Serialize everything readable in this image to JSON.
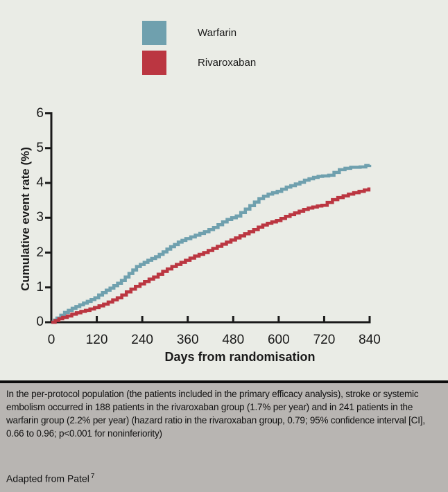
{
  "chart_data": {
    "type": "line",
    "step": true,
    "title": "",
    "xlabel": "Days from randomisation",
    "ylabel": "Cumulative event rate (%)",
    "xlim": [
      0,
      840
    ],
    "ylim": [
      0,
      6
    ],
    "x_ticks": [
      0,
      120,
      240,
      360,
      480,
      600,
      720,
      840
    ],
    "y_ticks": [
      0,
      1,
      2,
      3,
      4,
      5,
      6
    ],
    "grid": false,
    "legend_position": "top-center",
    "series": [
      {
        "name": "Warfarin",
        "color": "#6fa0ae",
        "points": [
          [
            0,
            0
          ],
          [
            8,
            0.06
          ],
          [
            15,
            0.12
          ],
          [
            25,
            0.2
          ],
          [
            35,
            0.28
          ],
          [
            45,
            0.34
          ],
          [
            55,
            0.4
          ],
          [
            65,
            0.45
          ],
          [
            75,
            0.5
          ],
          [
            85,
            0.55
          ],
          [
            95,
            0.6
          ],
          [
            105,
            0.65
          ],
          [
            115,
            0.7
          ],
          [
            125,
            0.78
          ],
          [
            135,
            0.85
          ],
          [
            145,
            0.92
          ],
          [
            155,
            0.98
          ],
          [
            165,
            1.05
          ],
          [
            175,
            1.12
          ],
          [
            185,
            1.2
          ],
          [
            195,
            1.3
          ],
          [
            205,
            1.4
          ],
          [
            215,
            1.5
          ],
          [
            225,
            1.6
          ],
          [
            235,
            1.66
          ],
          [
            245,
            1.72
          ],
          [
            255,
            1.78
          ],
          [
            265,
            1.83
          ],
          [
            275,
            1.88
          ],
          [
            285,
            1.95
          ],
          [
            295,
            2.02
          ],
          [
            305,
            2.1
          ],
          [
            315,
            2.17
          ],
          [
            325,
            2.23
          ],
          [
            335,
            2.3
          ],
          [
            345,
            2.35
          ],
          [
            355,
            2.4
          ],
          [
            368,
            2.45
          ],
          [
            380,
            2.5
          ],
          [
            392,
            2.55
          ],
          [
            404,
            2.6
          ],
          [
            416,
            2.66
          ],
          [
            428,
            2.72
          ],
          [
            440,
            2.8
          ],
          [
            452,
            2.88
          ],
          [
            464,
            2.95
          ],
          [
            476,
            3.0
          ],
          [
            488,
            3.05
          ],
          [
            500,
            3.15
          ],
          [
            512,
            3.25
          ],
          [
            524,
            3.35
          ],
          [
            536,
            3.45
          ],
          [
            548,
            3.55
          ],
          [
            560,
            3.62
          ],
          [
            572,
            3.68
          ],
          [
            584,
            3.72
          ],
          [
            596,
            3.76
          ],
          [
            608,
            3.82
          ],
          [
            620,
            3.88
          ],
          [
            632,
            3.92
          ],
          [
            644,
            3.97
          ],
          [
            656,
            4.02
          ],
          [
            668,
            4.08
          ],
          [
            680,
            4.12
          ],
          [
            692,
            4.16
          ],
          [
            704,
            4.19
          ],
          [
            716,
            4.2
          ],
          [
            732,
            4.22
          ],
          [
            746,
            4.3
          ],
          [
            760,
            4.38
          ],
          [
            775,
            4.42
          ],
          [
            790,
            4.45
          ],
          [
            815,
            4.46
          ],
          [
            830,
            4.5
          ],
          [
            840,
            4.52
          ]
        ]
      },
      {
        "name": "Rivaroxaban",
        "color": "#bb3641",
        "points": [
          [
            0,
            0
          ],
          [
            10,
            0.05
          ],
          [
            20,
            0.1
          ],
          [
            30,
            0.14
          ],
          [
            42,
            0.18
          ],
          [
            54,
            0.23
          ],
          [
            66,
            0.27
          ],
          [
            78,
            0.31
          ],
          [
            90,
            0.34
          ],
          [
            102,
            0.38
          ],
          [
            114,
            0.42
          ],
          [
            126,
            0.47
          ],
          [
            138,
            0.52
          ],
          [
            150,
            0.58
          ],
          [
            162,
            0.64
          ],
          [
            174,
            0.7
          ],
          [
            186,
            0.78
          ],
          [
            198,
            0.87
          ],
          [
            210,
            0.95
          ],
          [
            222,
            1.03
          ],
          [
            234,
            1.1
          ],
          [
            246,
            1.17
          ],
          [
            258,
            1.24
          ],
          [
            270,
            1.3
          ],
          [
            282,
            1.38
          ],
          [
            294,
            1.46
          ],
          [
            306,
            1.53
          ],
          [
            318,
            1.6
          ],
          [
            330,
            1.66
          ],
          [
            342,
            1.72
          ],
          [
            354,
            1.78
          ],
          [
            366,
            1.84
          ],
          [
            378,
            1.9
          ],
          [
            390,
            1.95
          ],
          [
            402,
            2.0
          ],
          [
            414,
            2.06
          ],
          [
            426,
            2.12
          ],
          [
            438,
            2.18
          ],
          [
            450,
            2.24
          ],
          [
            462,
            2.3
          ],
          [
            474,
            2.36
          ],
          [
            486,
            2.42
          ],
          [
            498,
            2.48
          ],
          [
            510,
            2.54
          ],
          [
            522,
            2.6
          ],
          [
            534,
            2.66
          ],
          [
            546,
            2.73
          ],
          [
            558,
            2.79
          ],
          [
            570,
            2.84
          ],
          [
            582,
            2.88
          ],
          [
            594,
            2.92
          ],
          [
            606,
            2.98
          ],
          [
            618,
            3.04
          ],
          [
            630,
            3.09
          ],
          [
            642,
            3.14
          ],
          [
            654,
            3.19
          ],
          [
            666,
            3.24
          ],
          [
            678,
            3.28
          ],
          [
            690,
            3.31
          ],
          [
            702,
            3.34
          ],
          [
            714,
            3.36
          ],
          [
            728,
            3.44
          ],
          [
            742,
            3.52
          ],
          [
            756,
            3.58
          ],
          [
            770,
            3.63
          ],
          [
            784,
            3.68
          ],
          [
            798,
            3.72
          ],
          [
            812,
            3.76
          ],
          [
            826,
            3.8
          ],
          [
            838,
            3.87
          ]
        ]
      }
    ]
  },
  "caption": {
    "body": "In the per-protocol population (the patients included in the primary efficacy analysis), stroke or systemic embolism occurred in 188 patients in the rivaroxaban group (1.7% per year) and in 241 patients in the warfarin group (2.2% per year) (hazard ratio in the rivaroxaban group, 0.79; 95% confidence interval [CI], 0.66 to 0.96; p<0.001 for noninferiority)",
    "source": "Adapted from Patel",
    "source_ref": "7"
  },
  "colors": {
    "background": "#eaece6",
    "caption_background": "#b8b5b2",
    "divider": "#0c0c0c",
    "axis": "#1a1a1a",
    "text": "#1a1a1a"
  }
}
